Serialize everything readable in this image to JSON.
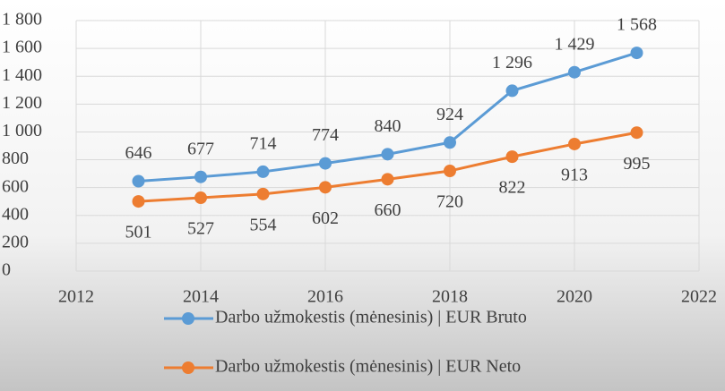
{
  "chart_data": {
    "type": "line",
    "x": [
      2013,
      2014,
      2015,
      2016,
      2017,
      2018,
      2019,
      2020,
      2021
    ],
    "series": [
      {
        "name": "Darbo užmokestis (mėnesinis) | EUR Bruto",
        "color": "#5b9bd5",
        "values": [
          646,
          677,
          714,
          774,
          840,
          924,
          1296,
          1429,
          1568
        ],
        "value_labels": [
          "646",
          "677",
          "714",
          "774",
          "840",
          "924",
          "1 296",
          "1 429",
          "1 568"
        ]
      },
      {
        "name": "Darbo užmokestis (mėnesinis) | EUR Neto",
        "color": "#ed7d31",
        "values": [
          501,
          527,
          554,
          602,
          660,
          720,
          822,
          913,
          995
        ]
      }
    ],
    "xlim": [
      2012,
      2022
    ],
    "xticks": [
      2012,
      2014,
      2016,
      2018,
      2020,
      2022
    ],
    "ylim": [
      0,
      1800
    ],
    "yticks": [
      0,
      200,
      400,
      600,
      800,
      {
        "value": 1000,
        "label": "1 000"
      },
      {
        "value": 1200,
        "label": "1 200"
      },
      {
        "value": 1400,
        "label": "1 400"
      },
      {
        "value": 1600,
        "label": "1 600"
      },
      {
        "value": 1800,
        "label": "1 800"
      }
    ],
    "grid": true,
    "legend": "bottom"
  }
}
